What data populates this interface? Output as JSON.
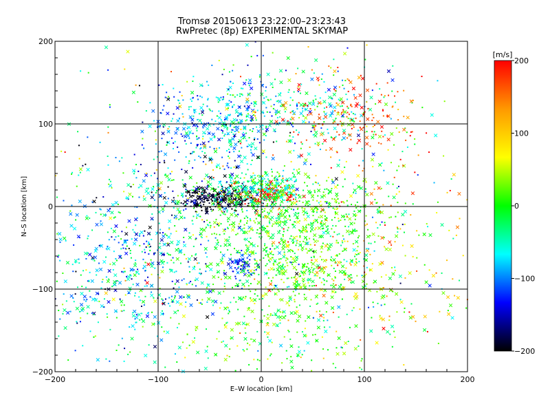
{
  "chart_data": {
    "type": "scatter",
    "title": "Tromsø 20150613 23:22:00–23:23:43",
    "subtitle": "RwPretec (8p) EXPERIMENTAL SKYMAP",
    "xlabel": "E–W location [km]",
    "ylabel": "N–S location [km]",
    "xlim": [
      -200,
      200
    ],
    "ylim": [
      -200,
      200
    ],
    "xticks": [
      -200,
      -100,
      0,
      100,
      200
    ],
    "yticks": [
      -200,
      -100,
      0,
      100,
      200
    ],
    "xtick_labels": [
      "−200",
      "−100",
      "0",
      "100",
      "200"
    ],
    "ytick_labels": [
      "−200",
      "−100",
      "0",
      "100",
      "200"
    ],
    "grid_lines": [
      -100,
      0,
      100
    ],
    "grid": true,
    "markers": [
      "x",
      "dot"
    ],
    "colorbar": {
      "label": "[m/s]",
      "range": [
        -200,
        200
      ],
      "ticks": [
        200,
        100,
        0,
        -100,
        -200
      ],
      "tick_labels": [
        "200",
        "100",
        "0",
        "−100",
        "−200"
      ],
      "colors": [
        "#ff0000",
        "#ff9900",
        "#ffff00",
        "#00ff00",
        "#00ffff",
        "#0000ff",
        "#000000"
      ]
    },
    "clusters": [
      {
        "x": -40,
        "y": 10,
        "sx": 18,
        "sy": 7,
        "vm": -195,
        "vs": 15,
        "n": 260
      },
      {
        "x": 10,
        "y": 15,
        "sx": 14,
        "sy": 7,
        "vm": 185,
        "vs": 20,
        "n": 110
      },
      {
        "x": -5,
        "y": 20,
        "sx": 25,
        "sy": 12,
        "vm": -40,
        "vs": 40,
        "n": 250
      },
      {
        "x": 25,
        "y": -20,
        "sx": 45,
        "sy": 35,
        "vm": 5,
        "vs": 30,
        "n": 700
      },
      {
        "x": -40,
        "y": 100,
        "sx": 30,
        "sy": 25,
        "vm": -90,
        "vs": 40,
        "n": 300
      },
      {
        "x": 40,
        "y": 120,
        "sx": 45,
        "sy": 25,
        "vm": -40,
        "vs": 50,
        "n": 280
      },
      {
        "x": 85,
        "y": 105,
        "sx": 30,
        "sy": 25,
        "vm": 170,
        "vs": 30,
        "n": 160
      },
      {
        "x": -120,
        "y": -60,
        "sx": 45,
        "sy": 45,
        "vm": -80,
        "vs": 50,
        "n": 450
      },
      {
        "x": -160,
        "y": -130,
        "sx": 30,
        "sy": 40,
        "vm": -50,
        "vs": 60,
        "n": 80
      },
      {
        "x": -20,
        "y": -70,
        "sx": 8,
        "sy": 8,
        "vm": -130,
        "vs": 20,
        "n": 60
      },
      {
        "x": 40,
        "y": -80,
        "sx": 35,
        "sy": 20,
        "vm": 10,
        "vs": 30,
        "n": 200
      },
      {
        "x": 0,
        "y": -140,
        "sx": 70,
        "sy": 40,
        "vm": 0,
        "vs": 40,
        "n": 300
      },
      {
        "x": 110,
        "y": -40,
        "sx": 60,
        "sy": 60,
        "vm": 60,
        "vs": 70,
        "n": 250
      },
      {
        "x": -90,
        "y": 40,
        "sx": 50,
        "sy": 40,
        "vm": -70,
        "vs": 80,
        "n": 150
      },
      {
        "x": 0,
        "y": 0,
        "sx": 110,
        "sy": 110,
        "vm": 0,
        "vs": 100,
        "n": 400
      }
    ]
  }
}
